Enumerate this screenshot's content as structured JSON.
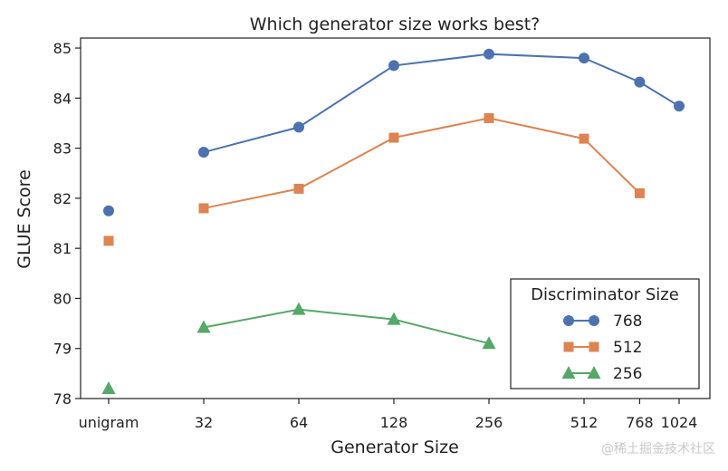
{
  "chart_data": {
    "type": "line",
    "title": "Which generator size works best?",
    "xlabel": "Generator Size",
    "ylabel": "GLUE Score",
    "categories": [
      "unigram",
      "32",
      "64",
      "128",
      "256",
      "512",
      "768",
      "1024"
    ],
    "x_tick_values": [
      0,
      32,
      64,
      128,
      256,
      512,
      768,
      1024
    ],
    "ylim": [
      78,
      85.2
    ],
    "yticks": [
      78,
      79,
      80,
      81,
      82,
      83,
      84,
      85
    ],
    "legend_title": "Discriminator Size",
    "legend_position": "bottom-right",
    "series": [
      {
        "name": "768",
        "color": "#4c72b0",
        "marker": "circle",
        "points": [
          {
            "x": "unigram",
            "y": 81.75
          },
          {
            "x": "32",
            "y": 82.92
          },
          {
            "x": "64",
            "y": 83.42
          },
          {
            "x": "128",
            "y": 84.65
          },
          {
            "x": "256",
            "y": 84.88
          },
          {
            "x": "512",
            "y": 84.8
          },
          {
            "x": "768",
            "y": 84.32
          },
          {
            "x": "1024",
            "y": 83.84
          }
        ]
      },
      {
        "name": "512",
        "color": "#dd8452",
        "marker": "square",
        "points": [
          {
            "x": "unigram",
            "y": 81.15
          },
          {
            "x": "32",
            "y": 81.8
          },
          {
            "x": "64",
            "y": 82.19
          },
          {
            "x": "128",
            "y": 83.21
          },
          {
            "x": "256",
            "y": 83.6
          },
          {
            "x": "512",
            "y": 83.19
          },
          {
            "x": "768",
            "y": 82.1
          }
        ]
      },
      {
        "name": "256",
        "color": "#55a868",
        "marker": "triangle",
        "points": [
          {
            "x": "unigram",
            "y": 78.2
          },
          {
            "x": "32",
            "y": 79.42
          },
          {
            "x": "64",
            "y": 79.78
          },
          {
            "x": "128",
            "y": 79.58
          },
          {
            "x": "256",
            "y": 79.1
          }
        ]
      }
    ]
  },
  "watermark": "@稀土掘金技术社区"
}
